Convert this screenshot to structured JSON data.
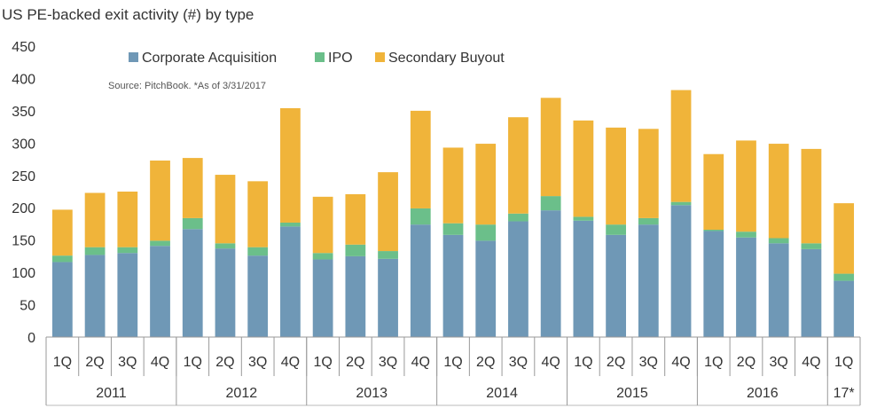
{
  "chart_data": {
    "type": "bar",
    "stacked": true,
    "title": "US PE-backed exit activity (#) by type",
    "source_note": "Source: PitchBook. *As of 3/31/2017",
    "ylim": [
      0,
      450
    ],
    "yticks": [
      0,
      50,
      100,
      150,
      200,
      250,
      300,
      350,
      400,
      450
    ],
    "categories": [
      "1Q",
      "2Q",
      "3Q",
      "4Q",
      "1Q",
      "2Q",
      "3Q",
      "4Q",
      "1Q",
      "2Q",
      "3Q",
      "4Q",
      "1Q",
      "2Q",
      "3Q",
      "4Q",
      "1Q",
      "2Q",
      "3Q",
      "4Q",
      "1Q",
      "2Q",
      "3Q",
      "4Q",
      "1Q"
    ],
    "year_groups": [
      {
        "label": "2011",
        "count": 4
      },
      {
        "label": "2012",
        "count": 4
      },
      {
        "label": "2013",
        "count": 4
      },
      {
        "label": "2014",
        "count": 4
      },
      {
        "label": "2015",
        "count": 4
      },
      {
        "label": "2016",
        "count": 4
      },
      {
        "label": "17*",
        "count": 1
      }
    ],
    "legend_position": "top",
    "series": [
      {
        "name": "Corporate Acquisition",
        "color": "#6f98b6",
        "values": [
          116,
          127,
          130,
          141,
          167,
          137,
          126,
          171,
          120,
          125,
          121,
          174,
          158,
          149,
          179,
          196,
          180,
          158,
          174,
          204,
          164,
          154,
          145,
          136,
          87
        ]
      },
      {
        "name": "IPO",
        "color": "#6bbf8a",
        "values": [
          10,
          12,
          9,
          8,
          17,
          8,
          13,
          6,
          10,
          18,
          12,
          25,
          18,
          25,
          12,
          22,
          6,
          16,
          10,
          5,
          2,
          9,
          8,
          9,
          11
        ]
      },
      {
        "name": "Secondary Buyout",
        "color": "#f0b43a",
        "values": [
          71,
          84,
          86,
          124,
          93,
          106,
          102,
          177,
          87,
          78,
          122,
          151,
          117,
          125,
          149,
          152,
          149,
          150,
          138,
          173,
          117,
          141,
          146,
          146,
          109
        ]
      }
    ]
  }
}
